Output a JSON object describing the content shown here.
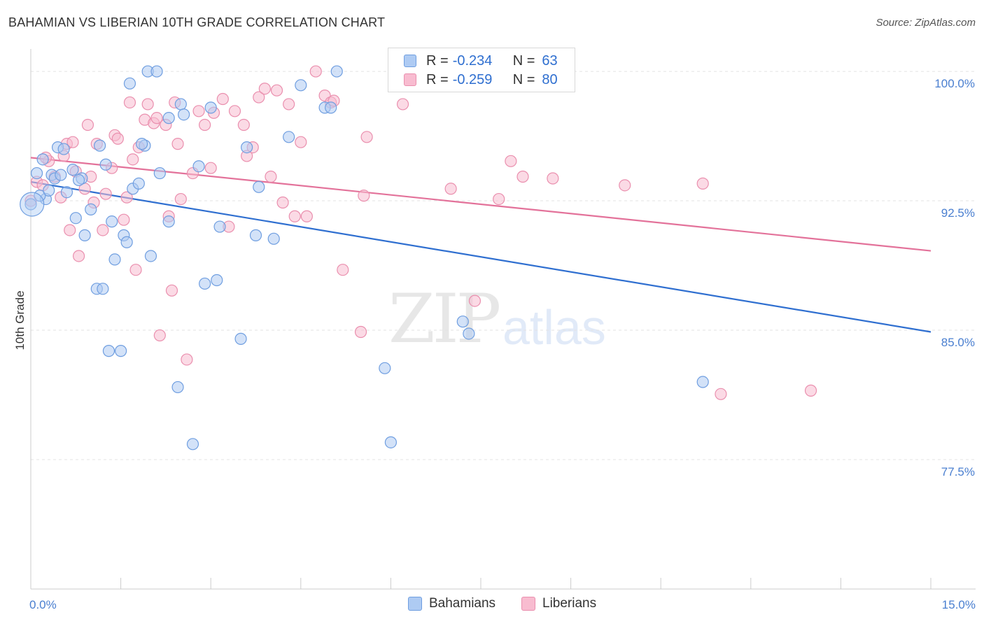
{
  "title": "BAHAMIAN VS LIBERIAN 10TH GRADE CORRELATION CHART",
  "source": "Source: ZipAtlas.com",
  "watermark": {
    "zip": "ZIP",
    "atlas": "atlas"
  },
  "legend": {
    "rows": [
      {
        "r_label": "R =",
        "r_value": "-0.234",
        "n_label": "N =",
        "n_value": "63"
      },
      {
        "r_label": "R =",
        "r_value": "-0.259",
        "n_label": "N =",
        "n_value": "80"
      }
    ]
  },
  "bottom_legend": {
    "bahamians": "Bahamians",
    "liberians": "Liberians"
  },
  "colors": {
    "bahamians_fill": "#aecbf3",
    "bahamians_stroke": "#6f9ee0",
    "bahamians_line": "#2f6fd0",
    "liberians_fill": "#f8bcd0",
    "liberians_stroke": "#ea8fae",
    "liberians_line": "#e3729a",
    "tick_text": "#4a7fd0"
  },
  "chart_data": {
    "type": "scatter",
    "title": "BAHAMIAN VS LIBERIAN 10TH GRADE CORRELATION CHART",
    "xlabel": "",
    "ylabel": "10th Grade",
    "xlim": [
      0,
      15
    ],
    "ylim": [
      70,
      101.3
    ],
    "x_tick_labels": [
      {
        "value": 0,
        "label": "0.0%"
      },
      {
        "value": 15,
        "label": "15.0%"
      }
    ],
    "y_tick_labels": [
      {
        "value": 100,
        "label": "100.0%"
      },
      {
        "value": 92.5,
        "label": "92.5%"
      },
      {
        "value": 85,
        "label": "85.0%"
      },
      {
        "value": 77.5,
        "label": "77.5%"
      }
    ],
    "grid": true,
    "legend_position": "top-center",
    "series": [
      {
        "name": "Bahamians",
        "trend": {
          "x": [
            0,
            15
          ],
          "y": [
            93.6,
            84.9
          ]
        },
        "points": [
          [
            0.0,
            92.3
          ],
          [
            0.1,
            94.1
          ],
          [
            0.2,
            94.9
          ],
          [
            0.25,
            92.6
          ],
          [
            0.35,
            94.0
          ],
          [
            0.4,
            93.8
          ],
          [
            0.45,
            95.6
          ],
          [
            0.5,
            94.0
          ],
          [
            0.6,
            93.0
          ],
          [
            0.7,
            94.3
          ],
          [
            0.75,
            91.5
          ],
          [
            0.85,
            93.8
          ],
          [
            0.9,
            90.5
          ],
          [
            1.0,
            92.0
          ],
          [
            1.1,
            87.4
          ],
          [
            1.15,
            95.7
          ],
          [
            1.2,
            87.4
          ],
          [
            1.3,
            83.8
          ],
          [
            1.35,
            91.3
          ],
          [
            1.4,
            89.1
          ],
          [
            1.5,
            83.8
          ],
          [
            1.55,
            90.5
          ],
          [
            1.6,
            90.1
          ],
          [
            1.65,
            99.3
          ],
          [
            1.7,
            93.2
          ],
          [
            1.8,
            93.5
          ],
          [
            1.9,
            95.7
          ],
          [
            1.95,
            100.0
          ],
          [
            2.0,
            89.3
          ],
          [
            2.1,
            100.0
          ],
          [
            2.3,
            97.3
          ],
          [
            2.3,
            91.3
          ],
          [
            2.45,
            81.7
          ],
          [
            2.5,
            98.1
          ],
          [
            2.55,
            97.5
          ],
          [
            2.7,
            78.4
          ],
          [
            2.8,
            94.5
          ],
          [
            2.9,
            87.7
          ],
          [
            3.0,
            97.9
          ],
          [
            3.1,
            87.9
          ],
          [
            3.15,
            91.0
          ],
          [
            3.5,
            84.5
          ],
          [
            3.6,
            95.6
          ],
          [
            3.75,
            90.5
          ],
          [
            3.8,
            93.3
          ],
          [
            4.05,
            90.3
          ],
          [
            4.3,
            96.2
          ],
          [
            4.5,
            99.2
          ],
          [
            4.9,
            97.9
          ],
          [
            5.0,
            97.9
          ],
          [
            5.1,
            100.0
          ],
          [
            5.9,
            82.8
          ],
          [
            6.0,
            78.5
          ],
          [
            7.2,
            85.5
          ],
          [
            7.3,
            84.8
          ],
          [
            11.2,
            82.0
          ],
          [
            0.15,
            92.8
          ],
          [
            0.55,
            95.5
          ],
          [
            1.25,
            94.6
          ],
          [
            2.15,
            94.1
          ],
          [
            0.3,
            93.1
          ],
          [
            0.8,
            93.7
          ],
          [
            1.85,
            95.8
          ]
        ]
      },
      {
        "name": "Liberians",
        "trend": {
          "x": [
            0,
            15
          ],
          "y": [
            95.0,
            89.6
          ]
        },
        "points": [
          [
            0.0,
            92.5
          ],
          [
            0.1,
            93.6
          ],
          [
            0.2,
            93.4
          ],
          [
            0.3,
            94.8
          ],
          [
            0.4,
            93.9
          ],
          [
            0.5,
            92.7
          ],
          [
            0.55,
            95.1
          ],
          [
            0.6,
            95.8
          ],
          [
            0.7,
            95.9
          ],
          [
            0.8,
            89.3
          ],
          [
            0.9,
            93.2
          ],
          [
            0.95,
            96.9
          ],
          [
            1.0,
            93.9
          ],
          [
            1.05,
            92.4
          ],
          [
            1.1,
            95.8
          ],
          [
            1.2,
            90.8
          ],
          [
            1.25,
            92.9
          ],
          [
            1.35,
            94.4
          ],
          [
            1.4,
            96.3
          ],
          [
            1.45,
            96.1
          ],
          [
            1.55,
            91.4
          ],
          [
            1.65,
            98.2
          ],
          [
            1.7,
            94.9
          ],
          [
            1.75,
            88.5
          ],
          [
            1.8,
            95.6
          ],
          [
            1.9,
            97.2
          ],
          [
            1.95,
            98.1
          ],
          [
            2.05,
            97.0
          ],
          [
            2.1,
            97.3
          ],
          [
            2.15,
            84.7
          ],
          [
            2.25,
            96.9
          ],
          [
            2.3,
            91.6
          ],
          [
            2.35,
            87.3
          ],
          [
            2.4,
            98.2
          ],
          [
            2.5,
            92.6
          ],
          [
            2.6,
            83.3
          ],
          [
            2.7,
            94.1
          ],
          [
            2.8,
            97.7
          ],
          [
            2.9,
            96.9
          ],
          [
            3.0,
            94.4
          ],
          [
            3.05,
            97.6
          ],
          [
            3.2,
            98.4
          ],
          [
            3.3,
            91.0
          ],
          [
            3.4,
            97.7
          ],
          [
            3.6,
            95.1
          ],
          [
            3.7,
            95.6
          ],
          [
            3.8,
            98.5
          ],
          [
            3.9,
            99.0
          ],
          [
            4.0,
            93.9
          ],
          [
            4.1,
            98.9
          ],
          [
            4.2,
            92.4
          ],
          [
            4.3,
            98.1
          ],
          [
            4.4,
            91.6
          ],
          [
            4.5,
            95.9
          ],
          [
            4.6,
            91.6
          ],
          [
            4.75,
            100.0
          ],
          [
            4.9,
            98.6
          ],
          [
            5.0,
            98.2
          ],
          [
            5.05,
            98.3
          ],
          [
            5.2,
            88.5
          ],
          [
            5.5,
            84.9
          ],
          [
            5.55,
            92.8
          ],
          [
            5.6,
            96.2
          ],
          [
            6.2,
            98.1
          ],
          [
            7.0,
            93.2
          ],
          [
            7.4,
            86.7
          ],
          [
            7.8,
            92.6
          ],
          [
            8.0,
            94.8
          ],
          [
            8.2,
            93.9
          ],
          [
            8.7,
            93.8
          ],
          [
            9.9,
            93.4
          ],
          [
            11.2,
            93.5
          ],
          [
            11.5,
            81.3
          ],
          [
            13.0,
            81.5
          ],
          [
            0.25,
            95.0
          ],
          [
            0.65,
            90.8
          ],
          [
            0.75,
            94.2
          ],
          [
            1.6,
            92.7
          ],
          [
            2.45,
            95.8
          ],
          [
            3.55,
            96.9
          ]
        ]
      }
    ]
  }
}
